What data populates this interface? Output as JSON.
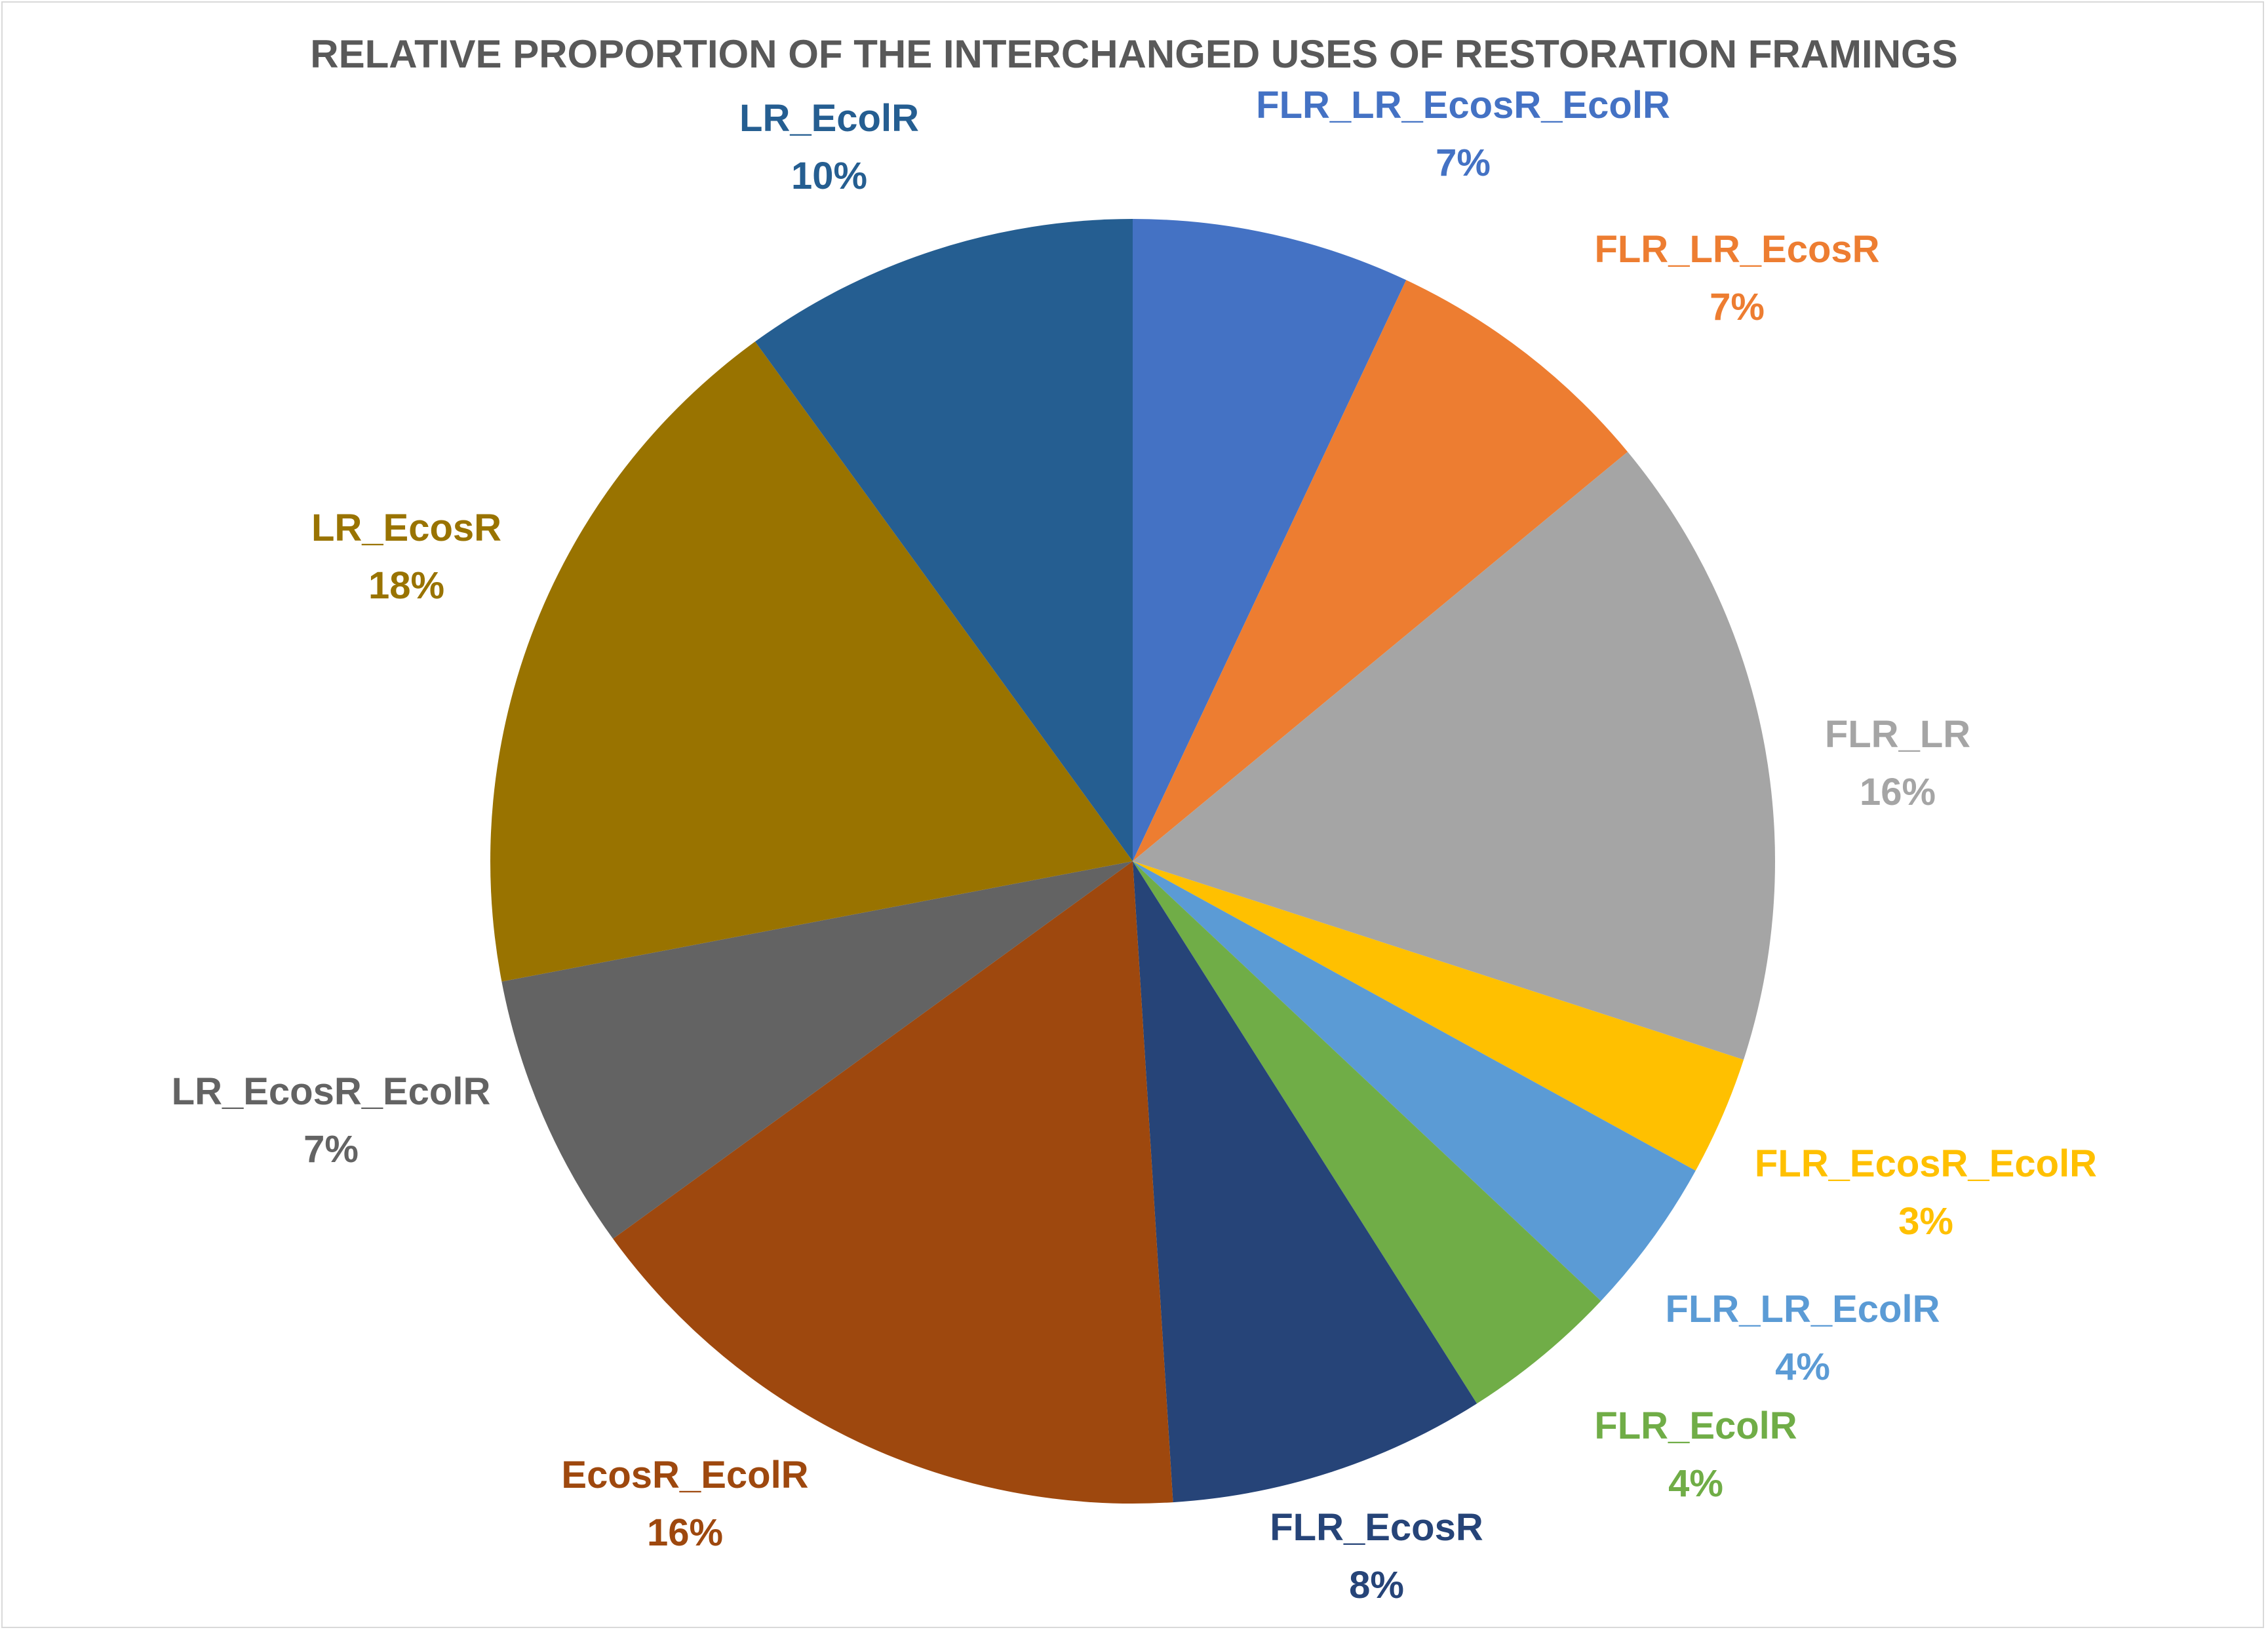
{
  "chart_data": {
    "type": "pie",
    "title": "RELATIVE PROPORTION OF THE INTERCHANGED USES OF RESTORATION FRAMINGS",
    "legend": "none",
    "slices": [
      {
        "name": "FLR_LR_EcosR_EcolR",
        "value": 7,
        "label": "7%",
        "color": "#4472C4"
      },
      {
        "name": "FLR_LR_EcosR",
        "value": 7,
        "label": "7%",
        "color": "#ED7D31"
      },
      {
        "name": "FLR_LR",
        "value": 16,
        "label": "16%",
        "color": "#A5A5A5"
      },
      {
        "name": "FLR_EcosR_EcolR",
        "value": 3,
        "label": "3%",
        "color": "#FFC000"
      },
      {
        "name": "FLR_LR_EcolR",
        "value": 4,
        "label": "4%",
        "color": "#5B9BD5"
      },
      {
        "name": "FLR_EcolR",
        "value": 4,
        "label": "4%",
        "color": "#70AD47"
      },
      {
        "name": "FLR_EcosR",
        "value": 8,
        "label": "8%",
        "color": "#264478"
      },
      {
        "name": "EcosR_EcolR",
        "value": 16,
        "label": "16%",
        "color": "#9E480E"
      },
      {
        "name": "LR_EcosR_EcolR",
        "value": 7,
        "label": "7%",
        "color": "#636363"
      },
      {
        "name": "LR_EcosR",
        "value": 18,
        "label": "18%",
        "color": "#997300"
      },
      {
        "name": "LR_EcolR",
        "value": 10,
        "label": "10%",
        "color": "#255E91"
      }
    ]
  }
}
